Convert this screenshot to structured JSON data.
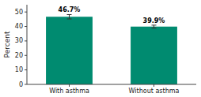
{
  "chart_data": {
    "type": "bar",
    "categories": [
      "With asthma",
      "Without asthma"
    ],
    "values": [
      46.7,
      39.9
    ],
    "errors": [
      1.5,
      1.0
    ],
    "value_labels": [
      "46.7%",
      "39.9%"
    ],
    "data_labels": true,
    "color": "#008B70",
    "ylabel": "Percent",
    "ylim": [
      0,
      55
    ],
    "yticks": [
      0,
      10,
      20,
      30,
      40,
      50
    ],
    "grid": false
  }
}
